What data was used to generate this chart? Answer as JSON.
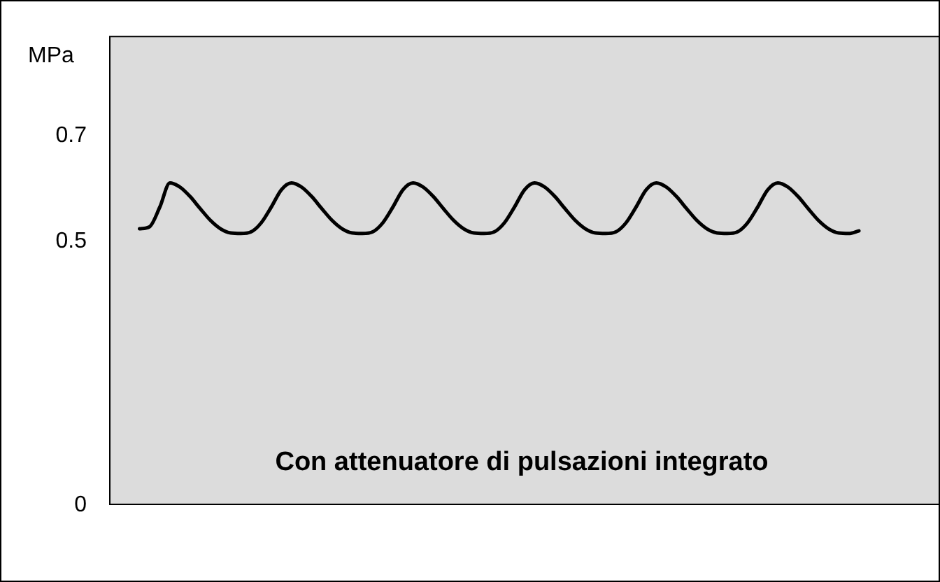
{
  "chart_data": {
    "type": "line",
    "ylabel": "MPa",
    "annotations": [
      "Con attenuatore di pulsazioni integrato"
    ],
    "categories": [
      null,
      null,
      null,
      null,
      null,
      null,
      null,
      null,
      null,
      null,
      null,
      null,
      null,
      null,
      null,
      null,
      null,
      null,
      null,
      null,
      null,
      null,
      null,
      null,
      null,
      null,
      null,
      null,
      null,
      null,
      null,
      null,
      null,
      null,
      null,
      null,
      null,
      null,
      null,
      null,
      null,
      null,
      null,
      null,
      null,
      null,
      null,
      null,
      null,
      null,
      null,
      null,
      null,
      null,
      null,
      null,
      null,
      null,
      null,
      null,
      null,
      null,
      null,
      null,
      null,
      null,
      null,
      null,
      null,
      null,
      null,
      null,
      null,
      null,
      null,
      null,
      null,
      null,
      null,
      null,
      null,
      null,
      null
    ],
    "series": [
      {
        "color": "#000000",
        "values": [
          null,
          null,
          null,
          0.524,
          0.528,
          0.565,
          0.611,
          0.603,
          0.585,
          0.562,
          0.54,
          0.524,
          0.516,
          0.515,
          0.518,
          0.535,
          0.565,
          0.598,
          0.611,
          0.603,
          0.585,
          0.562,
          0.54,
          0.524,
          0.516,
          0.515,
          0.518,
          0.535,
          0.565,
          0.598,
          0.611,
          0.603,
          0.585,
          0.562,
          0.54,
          0.524,
          0.516,
          0.515,
          0.518,
          0.535,
          0.565,
          0.598,
          0.611,
          0.603,
          0.585,
          0.562,
          0.54,
          0.524,
          0.516,
          0.515,
          0.518,
          0.535,
          0.565,
          0.598,
          0.611,
          0.603,
          0.585,
          0.562,
          0.54,
          0.524,
          0.516,
          0.515,
          0.518,
          0.535,
          0.565,
          0.598,
          0.611,
          0.603,
          0.585,
          0.562,
          0.54,
          0.524,
          0.516,
          0.515,
          0.52,
          null,
          null,
          null,
          null,
          null,
          null,
          null,
          null
        ]
      }
    ],
    "ylim": [
      0,
      0.89
    ],
    "yticks": [
      0,
      0.5,
      0.7
    ],
    "tick_labels": "y",
    "grid": false,
    "legend": false,
    "marker": "none",
    "line_style": "solid"
  }
}
